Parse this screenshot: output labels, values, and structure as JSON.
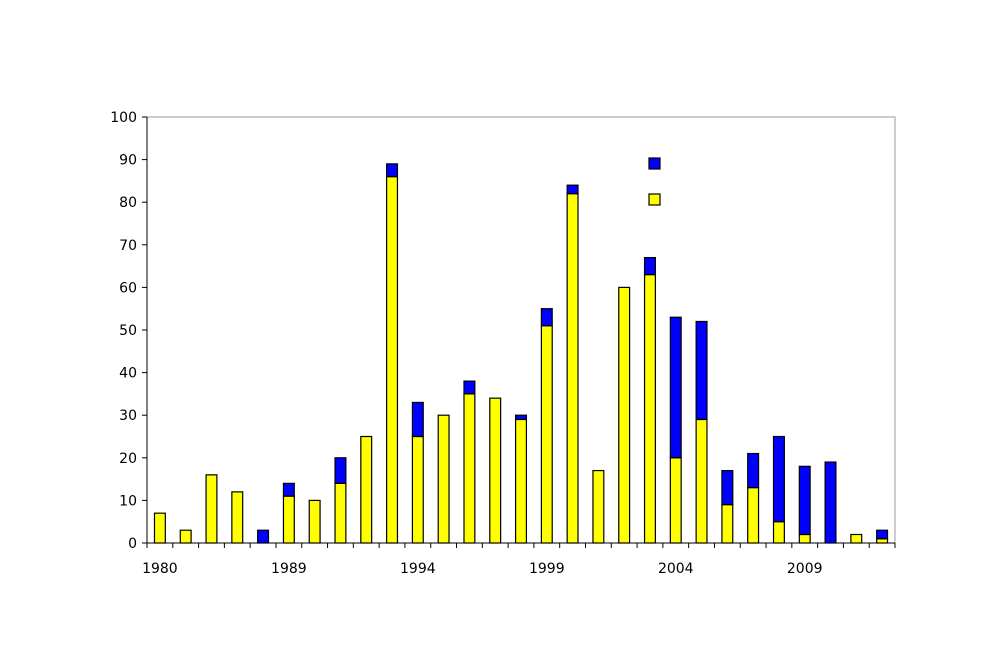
{
  "chart_data": {
    "type": "bar",
    "stacked": true,
    "title": "",
    "xlabel": "",
    "ylabel": "",
    "ylim": [
      0,
      100
    ],
    "yticks": [
      "0",
      "10",
      "20",
      "30",
      "40",
      "50",
      "60",
      "70",
      "80",
      "90",
      "100"
    ],
    "xtick_labels": [
      {
        "label": "1980",
        "index": 0
      },
      {
        "label": "1989",
        "index": 5
      },
      {
        "label": "1994",
        "index": 10
      },
      {
        "label": "1999",
        "index": 15
      },
      {
        "label": "2004",
        "index": 20
      },
      {
        "label": "2009",
        "index": 25
      }
    ],
    "categories_count": 29,
    "grid": false,
    "legend": {
      "placement": "top-right-inside",
      "entries": [
        {
          "color": "#0000ff"
        },
        {
          "color": "#ffff00"
        }
      ]
    },
    "series": [
      {
        "color": "#ffff00",
        "values": [
          7,
          3,
          16,
          12,
          0,
          11,
          10,
          14,
          25,
          86,
          25,
          30,
          35,
          34,
          29,
          51,
          82,
          17,
          60,
          63,
          20,
          29,
          9,
          13,
          5,
          2,
          0,
          2,
          1
        ]
      },
      {
        "color": "#0000ff",
        "values": [
          0,
          0,
          0,
          0,
          3,
          3,
          0,
          6,
          0,
          3,
          8,
          0,
          3,
          0,
          1,
          4,
          2,
          0,
          0,
          4,
          33,
          23,
          8,
          8,
          20,
          16,
          19,
          0,
          2
        ]
      }
    ]
  }
}
